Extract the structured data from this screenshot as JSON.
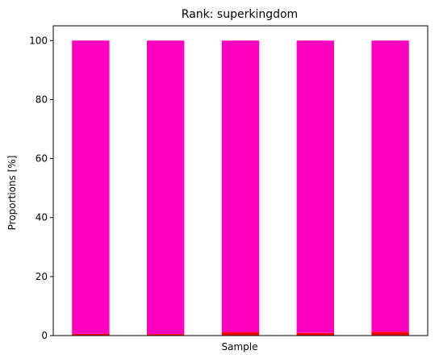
{
  "chart_data": {
    "type": "bar",
    "stacked": true,
    "title": "Rank: superkingdom",
    "xlabel": "Sample",
    "ylabel": "Proportions [%]",
    "ylim": [
      0,
      105
    ],
    "yticks": [
      0,
      20,
      40,
      60,
      80,
      100
    ],
    "categories": [
      "",
      "",
      "",
      "",
      ""
    ],
    "grid": false,
    "legend": "none",
    "series": [
      {
        "color": "#ff0000",
        "values": [
          0.6,
          0.5,
          1.2,
          0.9,
          1.3
        ]
      },
      {
        "color": "#ff00bf",
        "values": [
          99.4,
          99.5,
          98.8,
          99.1,
          98.7
        ]
      }
    ]
  }
}
